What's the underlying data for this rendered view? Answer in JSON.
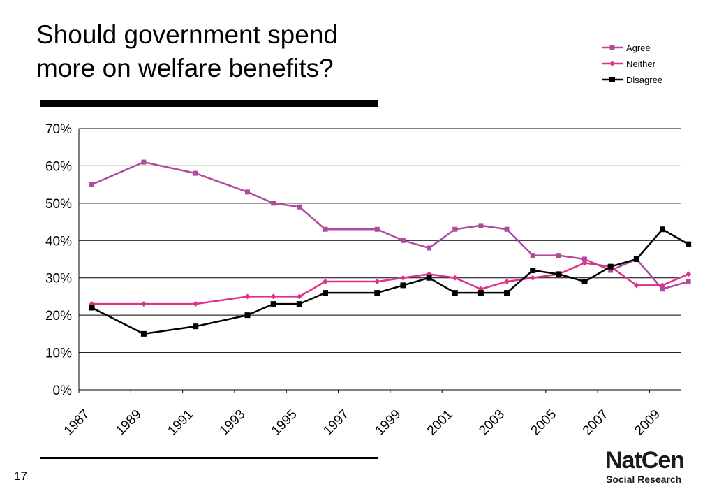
{
  "slide": {
    "title_line1": "Should government spend",
    "title_line2": "more on welfare benefits?",
    "page_number": "17",
    "logo_top": "NatCen",
    "logo_bottom": "Social Research"
  },
  "chart_data": {
    "type": "line",
    "title": "Should government spend more on welfare benefits?",
    "xlabel": "",
    "ylabel": "",
    "ylim": [
      0,
      70
    ],
    "y_ticks": [
      0,
      10,
      20,
      30,
      40,
      50,
      60,
      70
    ],
    "y_tick_labels": [
      "0%",
      "10%",
      "20%",
      "30%",
      "40%",
      "50%",
      "60%",
      "70%"
    ],
    "xlim": [
      1987,
      2010.2
    ],
    "x_ticks": [
      1987,
      1989,
      1991,
      1993,
      1995,
      1997,
      1999,
      2001,
      2003,
      2005,
      2007,
      2009
    ],
    "x_tick_labels": [
      "1987",
      "1989",
      "1991",
      "1993",
      "1995",
      "1997",
      "1999",
      "2001",
      "2003",
      "2005",
      "2007",
      "2009"
    ],
    "grid": "horizontal",
    "legend_position": "top-right",
    "x": [
      1987.5,
      1989.5,
      1991.5,
      1993.5,
      1994.5,
      1995.5,
      1996.5,
      1998.5,
      1999.5,
      2000.5,
      2001.5,
      2002.5,
      2003.5,
      2004.5,
      2005.5,
      2006.5,
      2007.5,
      2008.5,
      2009.5,
      2010.5
    ],
    "series": [
      {
        "name": "Agree",
        "color": "#b04a9e",
        "marker": "square",
        "values": [
          55,
          61,
          58,
          53,
          50,
          49,
          43,
          43,
          40,
          38,
          43,
          44,
          43,
          36,
          36,
          35,
          32,
          35,
          27,
          29
        ]
      },
      {
        "name": "Neither",
        "color": "#e0308a",
        "marker": "diamond",
        "values": [
          23,
          23,
          23,
          25,
          25,
          25,
          29,
          29,
          30,
          31,
          30,
          27,
          29,
          30,
          31,
          34,
          33,
          28,
          28,
          31
        ]
      },
      {
        "name": "Disagree",
        "color": "#000000",
        "marker": "square",
        "values": [
          22,
          15,
          17,
          20,
          23,
          23,
          26,
          26,
          28,
          30,
          26,
          26,
          26,
          32,
          31,
          29,
          33,
          35,
          43,
          39
        ]
      }
    ]
  }
}
